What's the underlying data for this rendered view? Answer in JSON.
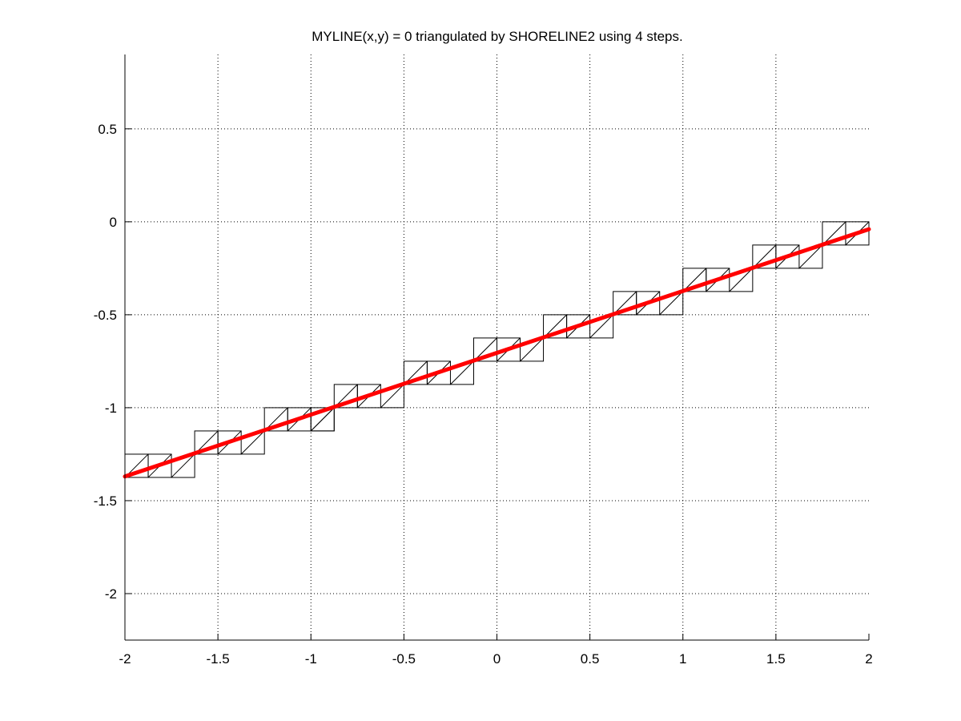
{
  "chart_data": {
    "type": "line",
    "title": "MYLINE(x,y) = 0 triangulated by SHORELINE2 using 4 steps.",
    "xlabel": "",
    "ylabel": "",
    "xlim": [
      -2,
      2
    ],
    "ylim": [
      -2.25,
      0.9
    ],
    "xticks": [
      -2,
      -1.5,
      -1,
      -0.5,
      0,
      0.5,
      1,
      1.5,
      2
    ],
    "yticks": [
      -2,
      -1.5,
      -1,
      -0.5,
      0,
      0.5
    ],
    "xtick_labels": [
      "-2",
      "-1.5",
      "-1",
      "-0.5",
      "0",
      "0.5",
      "1",
      "1.5",
      "2"
    ],
    "ytick_labels": [
      "-2",
      "-1.5",
      "-1",
      "-0.5",
      "0",
      "0.5"
    ],
    "grid": true,
    "legend": "none",
    "line": {
      "color": "#ff0000",
      "x": [
        -2,
        2
      ],
      "y": [
        -1.37,
        -0.04
      ]
    },
    "triangulation": {
      "color": "#000000",
      "cell_size": 0.125,
      "step_cells": [
        {
          "x": -2.0,
          "y": -1.375
        },
        {
          "x": -1.875,
          "y": -1.375
        },
        {
          "x": -1.625,
          "y": -1.25
        },
        {
          "x": -1.5,
          "y": -1.25
        },
        {
          "x": -1.25,
          "y": -1.125
        },
        {
          "x": -1.125,
          "y": -1.125
        },
        {
          "x": -1.0,
          "y": -1.125
        },
        {
          "x": -0.875,
          "y": -1.0
        },
        {
          "x": -0.75,
          "y": -1.0
        },
        {
          "x": -0.5,
          "y": -0.875
        },
        {
          "x": -0.375,
          "y": -0.875
        },
        {
          "x": -0.125,
          "y": -0.75
        },
        {
          "x": 0.0,
          "y": -0.75
        },
        {
          "x": 0.25,
          "y": -0.625
        },
        {
          "x": 0.375,
          "y": -0.625
        },
        {
          "x": 0.625,
          "y": -0.5
        },
        {
          "x": 0.75,
          "y": -0.5
        },
        {
          "x": 1.0,
          "y": -0.375
        },
        {
          "x": 1.125,
          "y": -0.375
        },
        {
          "x": 1.375,
          "y": -0.25
        },
        {
          "x": 1.5,
          "y": -0.25
        },
        {
          "x": 1.75,
          "y": -0.125
        },
        {
          "x": 1.875,
          "y": -0.125
        }
      ],
      "bridge_cells": [
        {
          "x": -1.75,
          "y": -1.375
        },
        {
          "x": -1.375,
          "y": -1.25
        },
        {
          "x": -1.0,
          "y": -1.125
        },
        {
          "x": -0.625,
          "y": -1.0
        },
        {
          "x": -0.25,
          "y": -0.875
        },
        {
          "x": 0.125,
          "y": -0.75
        },
        {
          "x": 0.5,
          "y": -0.625
        },
        {
          "x": 0.875,
          "y": -0.5
        },
        {
          "x": 1.25,
          "y": -0.375
        },
        {
          "x": 1.625,
          "y": -0.25
        }
      ]
    }
  }
}
